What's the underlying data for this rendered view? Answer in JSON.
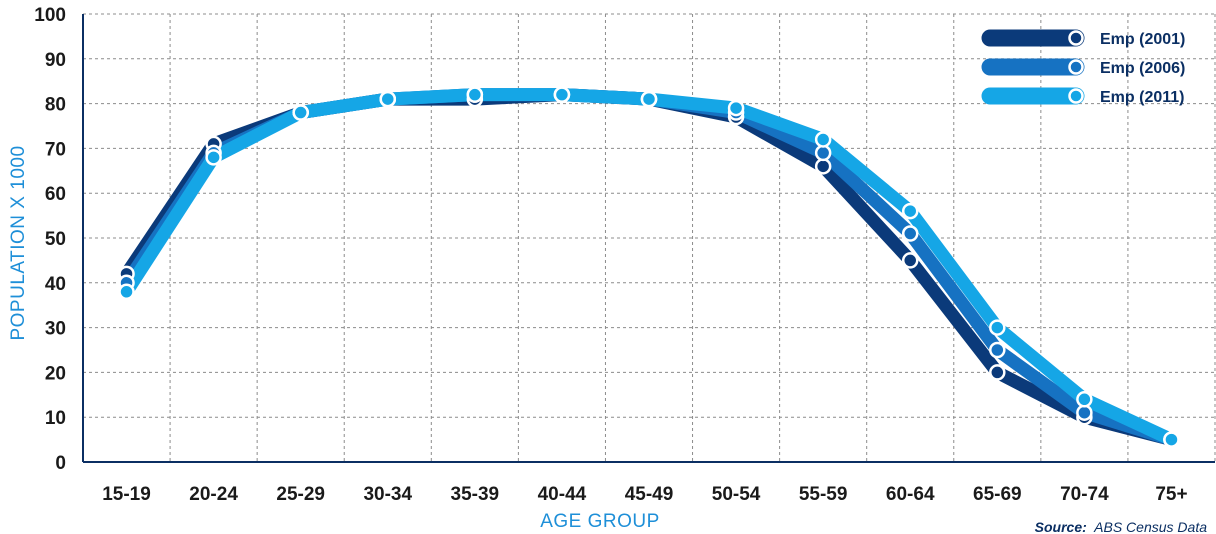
{
  "chart_data": {
    "type": "line",
    "xlabel": "AGE GROUP",
    "ylabel": "POPULATION X 1000",
    "ylim": [
      0,
      100
    ],
    "yticks": [
      0,
      10,
      20,
      30,
      40,
      50,
      60,
      70,
      80,
      90,
      100
    ],
    "grid": true,
    "legend_position": "top-right",
    "categories": [
      "15-19",
      "20-24",
      "25-29",
      "30-34",
      "35-39",
      "40-44",
      "45-49",
      "50-54",
      "55-59",
      "60-64",
      "65-69",
      "70-74",
      "75+"
    ],
    "series": [
      {
        "name": "Emp (2001)",
        "color": "#0b3a7a",
        "values": [
          42,
          71,
          78,
          81,
          81,
          82,
          81,
          77,
          66,
          45,
          20,
          10,
          5
        ]
      },
      {
        "name": "Emp (2006)",
        "color": "#1672c2",
        "values": [
          40,
          69,
          78,
          81,
          82,
          82,
          81,
          78,
          69,
          51,
          25,
          11,
          5
        ]
      },
      {
        "name": "Emp (2011)",
        "color": "#15a6e6",
        "values": [
          38,
          68,
          78,
          81,
          82,
          82,
          81,
          79,
          72,
          56,
          30,
          14,
          5
        ]
      }
    ],
    "source_label": "Source:",
    "source_text": "ABS Census Data"
  }
}
